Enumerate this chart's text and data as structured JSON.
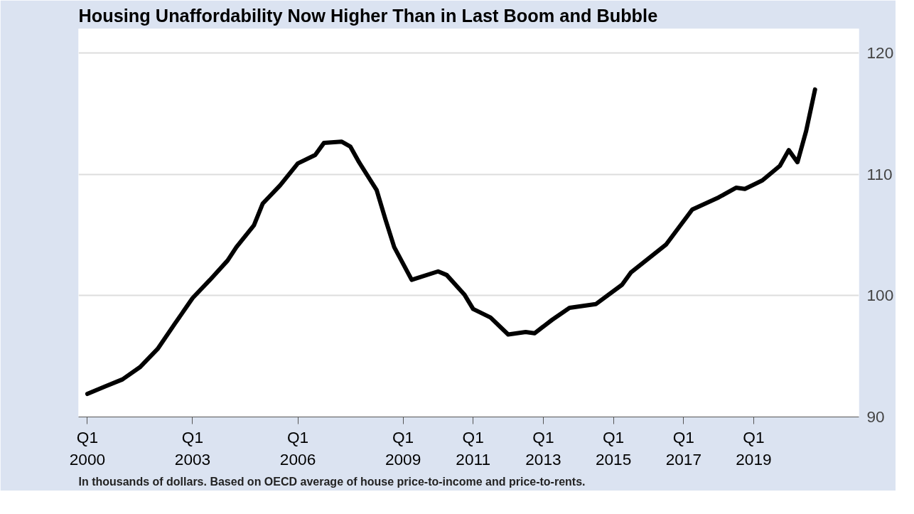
{
  "chart_data": {
    "type": "line",
    "title": "Housing Unaffordability Now Higher Than in Last Boom and Bubble",
    "annotations": [
      "In thousands of dollars. Based on OECD average of house price-to-income and price-to-rents."
    ],
    "x": [
      "2000-01",
      "2000-07",
      "2001-01",
      "2001-07",
      "2002-01",
      "2002-07",
      "2003-01",
      "2003-07",
      "2004-01",
      "2004-04",
      "2004-10",
      "2005-01",
      "2005-07",
      "2006-01",
      "2006-07",
      "2006-10",
      "2007-04",
      "2007-07",
      "2007-10",
      "2008-04",
      "2008-07",
      "2008-10",
      "2009-04",
      "2010-01",
      "2010-04",
      "2010-10",
      "2011-01",
      "2011-07",
      "2012-01",
      "2012-07",
      "2012-10",
      "2013-04",
      "2013-10",
      "2014-07",
      "2015-04",
      "2015-07",
      "2016-07",
      "2017-04",
      "2018-01",
      "2018-07",
      "2018-10",
      "2019-04",
      "2019-10",
      "2020-01",
      "2020-04",
      "2020-07",
      "2020-10"
    ],
    "series": [
      {
        "color": "#000000",
        "values": [
          91.9,
          92.5,
          93.1,
          94.1,
          95.6,
          97.7,
          99.8,
          101.3,
          102.9,
          104.0,
          105.8,
          107.6,
          109.1,
          110.9,
          111.6,
          112.6,
          112.7,
          112.3,
          111.0,
          108.7,
          106.3,
          104.0,
          101.3,
          102.0,
          101.7,
          100.1,
          98.9,
          98.2,
          96.8,
          97.0,
          96.9,
          98.0,
          99.0,
          99.3,
          100.9,
          101.9,
          104.2,
          107.1,
          108.1,
          108.9,
          108.8,
          109.5,
          110.7,
          112.0,
          111.0,
          113.6,
          117.0
        ]
      }
    ],
    "xlim": [
      "1999-10",
      "2022-01"
    ],
    "xticks": [
      {
        "value": "2000-01",
        "label": "Q1\n2000"
      },
      {
        "value": "2003-01",
        "label": "Q1\n2003"
      },
      {
        "value": "2006-01",
        "label": "Q1\n2006"
      },
      {
        "value": "2009-01",
        "label": "Q1\n2009"
      },
      {
        "value": "2011-01",
        "label": "Q1\n2011"
      },
      {
        "value": "2013-01",
        "label": "Q1\n2013"
      },
      {
        "value": "2015-01",
        "label": "Q1\n2015"
      },
      {
        "value": "2017-01",
        "label": "Q1\n2017"
      },
      {
        "value": "2019-01",
        "label": "Q1\n2019"
      }
    ],
    "ylim": [
      90,
      122
    ],
    "yticks": [
      90,
      100,
      110,
      120
    ],
    "grid": "y",
    "marker": "none",
    "line_style": "solid"
  }
}
